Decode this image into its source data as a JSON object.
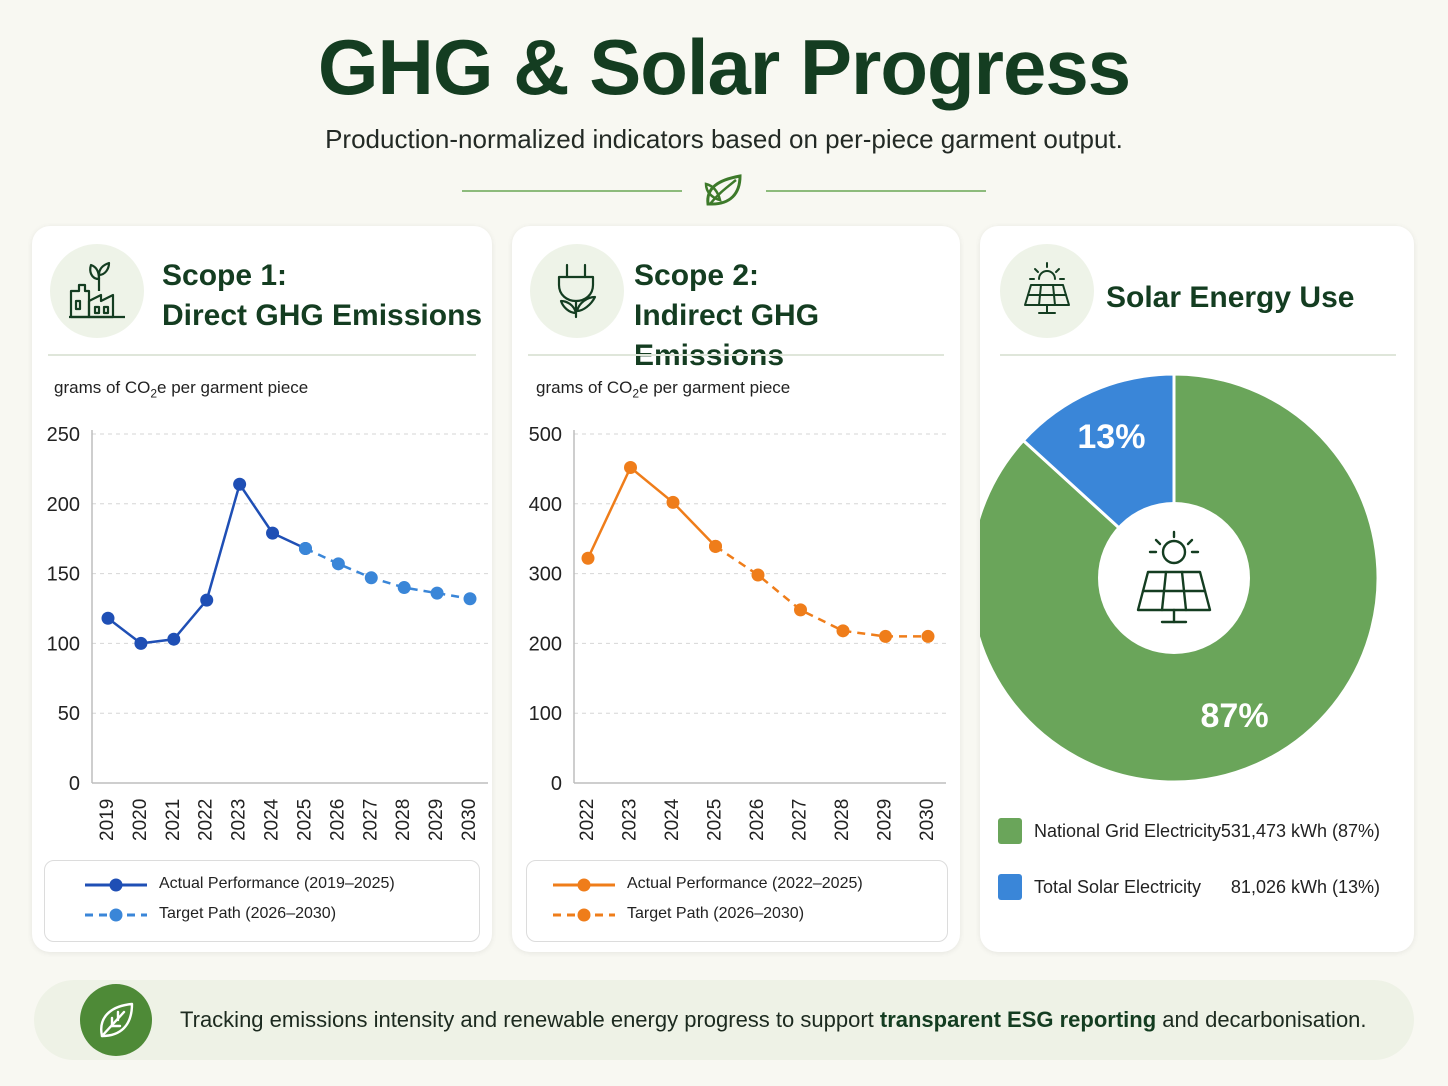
{
  "header": {
    "title": "GHG & Solar Progress",
    "subtitle": "Production-normalized indicators based on per-piece garment output."
  },
  "colors": {
    "dark_green": "#143d21",
    "scope1_actual": "#1f4fb5",
    "scope1_target": "#3a86d8",
    "scope2": "#ef7d1a",
    "grid_green": "#6aa55a",
    "solar_blue": "#3a86d8"
  },
  "cards": {
    "scope1": {
      "icon": "factory-plant-icon",
      "title_line1": "Scope 1:",
      "title_line2": "Direct GHG Emissions",
      "unit_prefix": "grams of CO",
      "unit_sub": "2",
      "unit_suffix": "e per garment piece",
      "legend_actual": "Actual Performance (2019–2025)",
      "legend_target": "Target Path (2026–2030)"
    },
    "scope2": {
      "icon": "plug-leaf-icon",
      "title_line1": "Scope 2:",
      "title_line2": "Indirect GHG Emissions",
      "unit_prefix": "grams of CO",
      "unit_sub": "2",
      "unit_suffix": "e per garment piece",
      "legend_actual": "Actual Performance (2022–2025)",
      "legend_target": "Target Path (2026–2030)"
    },
    "solar": {
      "icon": "solar-panel-icon",
      "title": "Solar Energy Use",
      "legend": [
        {
          "label": "National Grid Electricity",
          "value": "531,473 kWh (87%)"
        },
        {
          "label": "Total Solar Electricity",
          "value": "81,026 kWh (13%)"
        }
      ]
    }
  },
  "chart_data": [
    {
      "type": "line",
      "categories": [
        "2019",
        "2020",
        "2021",
        "2022",
        "2023",
        "2024",
        "2025",
        "2026",
        "2027",
        "2028",
        "2029",
        "2030"
      ],
      "series": [
        {
          "name": "Actual Performance (2019–2025)",
          "style": "solid",
          "x": [
            "2019",
            "2020",
            "2021",
            "2022",
            "2023",
            "2024",
            "2025"
          ],
          "values": [
            118,
            100,
            103,
            131,
            214,
            179,
            168
          ]
        },
        {
          "name": "Target Path (2026–2030)",
          "style": "dashed",
          "x": [
            "2025",
            "2026",
            "2027",
            "2028",
            "2029",
            "2030"
          ],
          "values": [
            168,
            157,
            147,
            140,
            136,
            132
          ]
        }
      ],
      "ylim": [
        0,
        250
      ],
      "yticks": [
        0,
        50,
        100,
        150,
        200,
        250
      ],
      "ylabel": "grams of CO2e per garment piece",
      "grid": true,
      "legend": "bottom"
    },
    {
      "type": "line",
      "categories": [
        "2022",
        "2023",
        "2024",
        "2025",
        "2026",
        "2027",
        "2028",
        "2029",
        "2030"
      ],
      "series": [
        {
          "name": "Actual Performance (2022–2025)",
          "style": "solid",
          "x": [
            "2022",
            "2023",
            "2024",
            "2025"
          ],
          "values": [
            322,
            452,
            402,
            339
          ]
        },
        {
          "name": "Target Path (2026–2030)",
          "style": "dashed",
          "x": [
            "2025",
            "2026",
            "2027",
            "2028",
            "2029",
            "2030"
          ],
          "values": [
            339,
            298,
            248,
            218,
            210,
            210
          ]
        }
      ],
      "ylim": [
        0,
        500
      ],
      "yticks": [
        0,
        100,
        200,
        300,
        400,
        500
      ],
      "ylabel": "grams of CO2e per garment piece",
      "grid": true,
      "legend": "bottom"
    },
    {
      "type": "pie",
      "title": "Solar Energy Use",
      "donut": true,
      "slices": [
        {
          "label": "National Grid Electricity",
          "value": 531473,
          "percent_label": "87%"
        },
        {
          "label": "Total Solar Electricity",
          "value": 81026,
          "percent_label": "13%"
        }
      ],
      "legend": "bottom"
    }
  ],
  "footer": {
    "icon": "leaf-icon",
    "text_before": "Tracking emissions intensity and renewable energy progress to support ",
    "text_bold": "transparent ESG reporting",
    "text_after": " and decarbonisation."
  }
}
